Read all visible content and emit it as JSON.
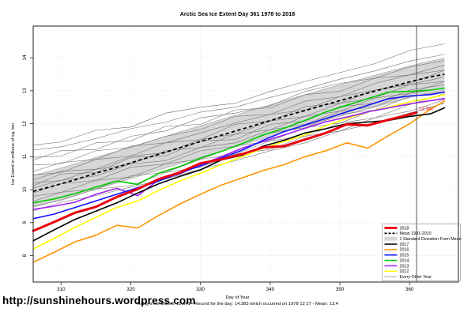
{
  "page": {
    "title": "Arctic Sea Ice Extent Day 361 1978 to 2018",
    "ylabel": "Ice Extent in millions of sq. km",
    "xlabel": "Day of Year",
    "footer_info": "Today's Ice Extent: 12.341  - Record for the day: 14.383 which occurred on 1978 12 27  - Mean: 13.4",
    "url_footer": "http://sunshinehours.wordpress.com"
  },
  "chart_data": {
    "type": "line",
    "title": "Arctic Sea Ice Extent Day 361 1978 to 2018",
    "xlabel": "Day of Year",
    "ylabel": "Ice Extent in millions of sq. km",
    "xlim": [
      306,
      367
    ],
    "ylim": [
      7.2,
      14.96
    ],
    "xticks": [
      310,
      320,
      330,
      340,
      350,
      360
    ],
    "yticks": [
      8,
      9,
      10,
      11,
      12,
      13,
      14
    ],
    "grid": true,
    "legend_position": "bottom-right",
    "today": {
      "ice_extent": 12.341,
      "record_for_day": 14.383,
      "record_date": "1978 12 27",
      "mean": 13.4
    },
    "marker": {
      "day": 361,
      "label": "12.341",
      "color": "#e8000d"
    },
    "days": [
      306,
      309,
      312,
      315,
      318,
      321,
      324,
      327,
      330,
      333,
      336,
      339,
      342,
      345,
      348,
      351,
      354,
      357,
      360,
      363,
      365
    ],
    "mean_line": {
      "name": "Mean 1981-2010",
      "color": "#000000",
      "style": "dashed",
      "values": [
        9.95,
        10.12,
        10.3,
        10.5,
        10.68,
        10.88,
        11.07,
        11.27,
        11.46,
        11.65,
        11.84,
        12.03,
        12.22,
        12.4,
        12.58,
        12.76,
        12.93,
        13.1,
        13.27,
        13.42,
        13.5
      ]
    },
    "band": {
      "name": "1 Standard Deviation From Mean",
      "color": "#d6d6d6",
      "edge_color": "#8f8f8f",
      "sd": 0.48
    },
    "series": [
      {
        "name": "2018",
        "color": "#e8000d",
        "width": 3,
        "days": [
          306,
          309,
          312,
          315,
          318,
          321,
          324,
          327,
          330,
          333,
          336,
          339,
          342,
          345,
          348,
          351,
          354,
          357,
          360,
          361
        ],
        "values": [
          8.75,
          9.02,
          9.3,
          9.48,
          9.78,
          10.02,
          10.32,
          10.52,
          10.8,
          10.92,
          11.08,
          11.28,
          11.32,
          11.52,
          11.72,
          11.98,
          11.95,
          12.12,
          12.28,
          12.341
        ]
      },
      {
        "name": "2017",
        "color": "#000000",
        "width": 1.6,
        "values": [
          8.45,
          8.78,
          9.1,
          9.35,
          9.6,
          9.9,
          10.18,
          10.4,
          10.6,
          10.9,
          11.05,
          11.32,
          11.5,
          11.72,
          11.85,
          12.0,
          12.05,
          12.1,
          12.22,
          12.3,
          12.48
        ]
      },
      {
        "name": "2016",
        "color": "#ff9400",
        "width": 1.6,
        "values": [
          7.8,
          8.1,
          8.42,
          8.62,
          8.92,
          8.84,
          9.22,
          9.56,
          9.86,
          10.14,
          10.36,
          10.58,
          10.76,
          11.0,
          11.18,
          11.42,
          11.26,
          11.64,
          12.0,
          12.44,
          12.68
        ]
      },
      {
        "name": "2015",
        "color": "#1414ff",
        "width": 1.6,
        "values": [
          9.12,
          9.26,
          9.46,
          9.66,
          9.86,
          10.06,
          10.26,
          10.5,
          10.72,
          10.96,
          11.2,
          11.5,
          11.76,
          11.96,
          12.16,
          12.36,
          12.56,
          12.76,
          12.84,
          12.88,
          12.96
        ]
      },
      {
        "name": "2014",
        "color": "#00cc00",
        "width": 1.6,
        "values": [
          9.6,
          9.72,
          9.88,
          10.08,
          10.26,
          10.16,
          10.5,
          10.7,
          10.96,
          11.16,
          11.4,
          11.66,
          11.86,
          12.1,
          12.36,
          12.56,
          12.76,
          12.96,
          12.98,
          13.02,
          13.08
        ]
      },
      {
        "name": "2013",
        "color": "#a020f0",
        "width": 1.6,
        "values": [
          9.4,
          9.5,
          9.62,
          9.86,
          10.04,
          9.82,
          10.3,
          10.48,
          10.76,
          11.0,
          11.26,
          11.46,
          11.66,
          11.86,
          12.06,
          12.2,
          12.36,
          12.48,
          12.6,
          12.7,
          12.76
        ]
      },
      {
        "name": "2012",
        "color": "#ffff00",
        "width": 1.6,
        "values": [
          8.2,
          8.52,
          8.86,
          9.16,
          9.46,
          9.66,
          9.98,
          10.26,
          10.5,
          10.76,
          11.0,
          11.26,
          11.46,
          11.66,
          11.94,
          12.16,
          12.36,
          12.5,
          12.66,
          12.78,
          12.88
        ]
      }
    ],
    "every_other_year": {
      "name": "Every Other Year",
      "color": "#6f6f6f",
      "days": [
        306,
        310,
        315,
        320,
        325,
        330,
        335,
        340,
        345,
        350,
        355,
        360,
        365
      ],
      "lines": [
        [
          11.35,
          11.45,
          11.8,
          11.9,
          12.32,
          12.5,
          12.62,
          12.98,
          13.28,
          13.55,
          13.82,
          14.22,
          14.42
        ],
        [
          11.2,
          11.3,
          11.55,
          11.85,
          12.05,
          12.35,
          12.5,
          12.8,
          13.05,
          13.35,
          13.6,
          13.9,
          14.1
        ],
        [
          10.98,
          11.02,
          11.42,
          11.48,
          11.92,
          11.98,
          12.42,
          12.48,
          12.88,
          12.98,
          13.38,
          13.48,
          13.78
        ],
        [
          10.9,
          11.18,
          11.22,
          11.62,
          11.78,
          12.18,
          12.32,
          12.55,
          12.98,
          13.22,
          13.38,
          13.72,
          13.92
        ],
        [
          10.75,
          10.78,
          11.18,
          11.28,
          11.62,
          11.82,
          12.22,
          12.28,
          12.68,
          12.82,
          13.22,
          13.48,
          13.62
        ],
        [
          10.55,
          10.82,
          10.92,
          11.32,
          11.42,
          11.72,
          12.02,
          12.28,
          12.42,
          12.82,
          13.02,
          13.22,
          13.62
        ],
        [
          10.45,
          10.52,
          10.92,
          11.02,
          11.42,
          11.52,
          11.98,
          12.08,
          12.52,
          12.62,
          13.02,
          13.18,
          13.42
        ],
        [
          10.3,
          10.56,
          10.62,
          11.02,
          11.12,
          11.52,
          11.68,
          12.08,
          12.22,
          12.62,
          12.78,
          13.18,
          13.28
        ],
        [
          10.2,
          10.28,
          10.62,
          10.78,
          11.18,
          11.28,
          11.68,
          11.82,
          12.22,
          12.38,
          12.78,
          12.92,
          13.28
        ],
        [
          10.12,
          10.48,
          10.52,
          10.98,
          11.02,
          11.48,
          11.52,
          11.98,
          12.08,
          12.52,
          12.62,
          13.02,
          13.18
        ],
        [
          10.05,
          10.28,
          10.42,
          10.78,
          10.88,
          11.28,
          11.42,
          11.82,
          11.98,
          12.38,
          12.52,
          12.92,
          13.08
        ],
        [
          9.9,
          10.18,
          10.28,
          10.68,
          10.78,
          11.18,
          11.32,
          11.72,
          11.88,
          12.28,
          12.42,
          12.82,
          12.98
        ],
        [
          9.8,
          9.92,
          10.28,
          10.38,
          10.78,
          10.92,
          11.32,
          11.48,
          11.88,
          12.02,
          12.42,
          12.58,
          12.92
        ],
        [
          9.65,
          9.92,
          10.02,
          10.42,
          10.52,
          10.92,
          11.08,
          11.48,
          11.62,
          12.02,
          12.18,
          12.58,
          12.78
        ],
        [
          9.5,
          9.68,
          10.02,
          10.12,
          10.52,
          10.68,
          11.08,
          11.22,
          11.62,
          11.78,
          12.18,
          12.38,
          12.72
        ],
        [
          9.35,
          9.62,
          9.82,
          10.08,
          10.32,
          10.62,
          10.88,
          11.18,
          11.42,
          11.78,
          12.02,
          12.32,
          12.62
        ]
      ]
    },
    "legend_items": [
      {
        "label": "2018",
        "color": "#e8000d",
        "lw": 2.8,
        "dash": false
      },
      {
        "label": "Mean 1981-2010",
        "color": "#000000",
        "lw": 1.8,
        "dash": true
      },
      {
        "label": "1 Standard Deviation From Mean",
        "color": "#d6d6d6",
        "lw": 5,
        "dash": false
      },
      {
        "label": "2017",
        "color": "#000000",
        "lw": 1.5,
        "dash": false
      },
      {
        "label": "2016",
        "color": "#ff9400",
        "lw": 1.5,
        "dash": false
      },
      {
        "label": "2015",
        "color": "#1414ff",
        "lw": 1.5,
        "dash": false
      },
      {
        "label": "2014",
        "color": "#00cc00",
        "lw": 1.5,
        "dash": false
      },
      {
        "label": "2013",
        "color": "#a020f0",
        "lw": 1.5,
        "dash": false
      },
      {
        "label": "2012",
        "color": "#ffff00",
        "lw": 1.5,
        "dash": false
      },
      {
        "label": "Every Other Year",
        "color": "#8a8a8a",
        "lw": 0.7,
        "dash": false
      }
    ]
  }
}
